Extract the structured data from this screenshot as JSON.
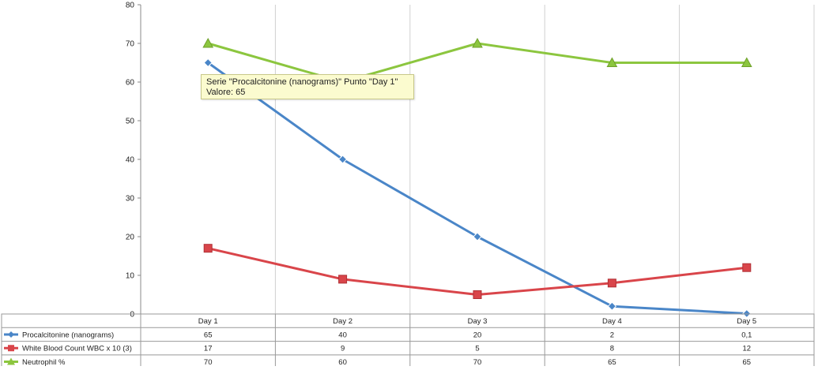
{
  "chart_data": {
    "type": "line",
    "title": "",
    "xlabel": "",
    "ylabel": "",
    "categories": [
      "Day 1",
      "Day 2",
      "Day 3",
      "Day 4",
      "Day 5"
    ],
    "ylim": [
      0,
      80
    ],
    "yticks": [
      "0",
      "10",
      "20",
      "30",
      "40",
      "50",
      "60",
      "70",
      "80"
    ],
    "grid": "vertical-category-lines",
    "legend": "data-table-below",
    "series": [
      {
        "name": "Procalcitonine (nanograms)",
        "color": "#4a86c8",
        "marker": "diamond",
        "values": [
          65,
          40,
          20,
          2,
          0.1
        ],
        "labels": [
          "65",
          "40",
          "20",
          "2",
          "0,1"
        ]
      },
      {
        "name": "White Blood Count WBC  x 10 (3)",
        "color": "#d9454a",
        "marker": "square",
        "values": [
          17,
          9,
          5,
          8,
          12
        ],
        "labels": [
          "17",
          "9",
          "5",
          "8",
          "12"
        ]
      },
      {
        "name": "Neutrophil %",
        "color": "#8cc63f",
        "marker": "triangle",
        "values": [
          70,
          60,
          70,
          65,
          65
        ],
        "labels": [
          "70",
          "60",
          "70",
          "65",
          "65"
        ]
      }
    ],
    "tooltip": {
      "line1": "Serie \"Procalcitonine (nanograms)\" Punto \"Day 1\"",
      "line2": "Valore: 65"
    }
  }
}
